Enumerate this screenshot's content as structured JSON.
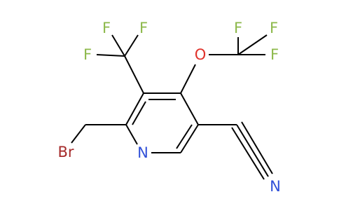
{
  "atoms": {
    "cf3_fluorines": [
      "F",
      "F",
      "F"
    ],
    "oxygen": "O",
    "ocf3_fluorines": [
      "F",
      "F",
      "F"
    ],
    "bromine": "Br",
    "ring_nitrogen": "N",
    "nitrile_nitrogen": "N"
  }
}
